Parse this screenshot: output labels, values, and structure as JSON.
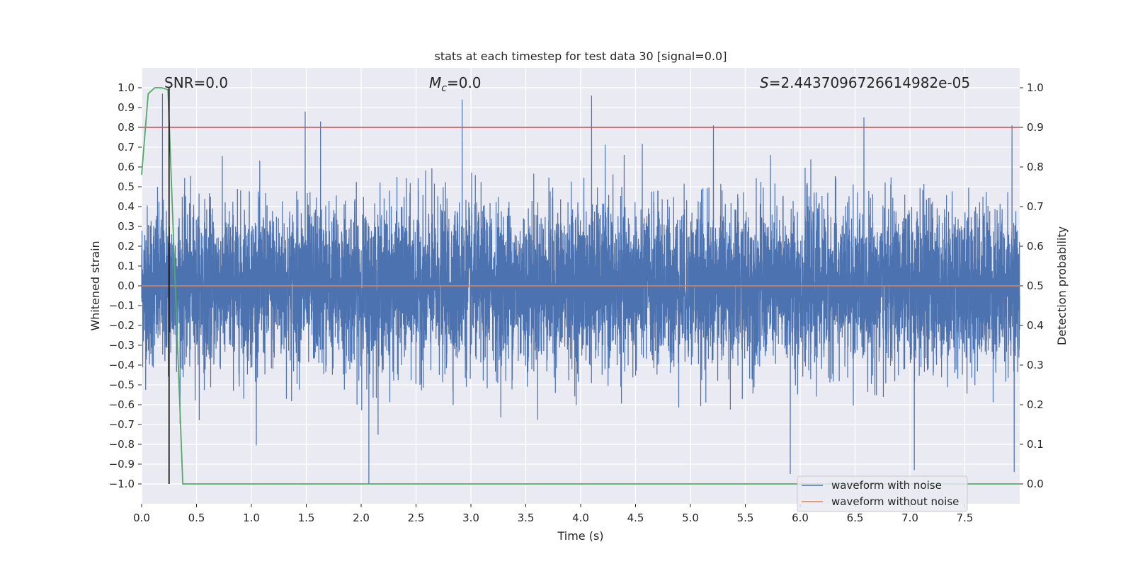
{
  "chart_data": {
    "type": "line",
    "title": "stats at each timestep for test data 30 [signal=0.0]",
    "xlabel": "Time (s)",
    "ylabel_left": "Whitened strain",
    "ylabel_right": "Detection probability",
    "xlim": [
      0.0,
      8.0
    ],
    "ylim_left": [
      -1.1,
      1.1
    ],
    "ylim_right": [
      -0.05,
      1.05
    ],
    "xticks": [
      0.0,
      0.5,
      1.0,
      1.5,
      2.0,
      2.5,
      3.0,
      3.5,
      4.0,
      4.5,
      5.0,
      5.5,
      6.0,
      6.5,
      7.0,
      7.5
    ],
    "xtick_labels": [
      "0.0",
      "0.5",
      "1.0",
      "1.5",
      "2.0",
      "2.5",
      "3.0",
      "3.5",
      "4.0",
      "4.5",
      "5.0",
      "5.5",
      "6.0",
      "6.5",
      "7.0",
      "7.5"
    ],
    "yticks_left": [
      -1.0,
      -0.9,
      -0.8,
      -0.7,
      -0.6,
      -0.5,
      -0.4,
      -0.3,
      -0.2,
      -0.1,
      0.0,
      0.1,
      0.2,
      0.3,
      0.4,
      0.5,
      0.6,
      0.7,
      0.8,
      0.9,
      1.0
    ],
    "ytick_labels_left": [
      "−1.0",
      "−0.9",
      "−0.8",
      "−0.7",
      "−0.6",
      "−0.5",
      "−0.4",
      "−0.3",
      "−0.2",
      "−0.1",
      "0.0",
      "0.1",
      "0.2",
      "0.3",
      "0.4",
      "0.5",
      "0.6",
      "0.7",
      "0.8",
      "0.9",
      "1.0"
    ],
    "yticks_right": [
      0.0,
      0.1,
      0.2,
      0.3,
      0.4,
      0.5,
      0.6,
      0.7,
      0.8,
      0.9,
      1.0
    ],
    "ytick_labels_right": [
      "0.0",
      "0.1",
      "0.2",
      "0.3",
      "0.4",
      "0.5",
      "0.6",
      "0.7",
      "0.8",
      "0.9",
      "1.0"
    ],
    "grid": true,
    "annotations": {
      "snr": "SNR=0.0",
      "mc_symbol": "M",
      "mc_sub": "c",
      "mc_value": "=0.0",
      "s_symbol": "S",
      "s_value": "=2.4437096726614982e-05"
    },
    "series": [
      {
        "name": "waveform with noise",
        "axis": "left",
        "color": "#4c72b0",
        "description": "dense noise trace, envelope roughly -0.65..0.65 with spikes to about 0.96 and -1.0",
        "envelope": [
          -0.65,
          0.65
        ],
        "peaks": [
          {
            "x": 0.19,
            "y": 0.97
          },
          {
            "x": 1.49,
            "y": 0.88
          },
          {
            "x": 1.63,
            "y": 0.83
          },
          {
            "x": 2.07,
            "y": -1.0
          },
          {
            "x": 2.92,
            "y": 0.94
          },
          {
            "x": 4.1,
            "y": 0.96
          },
          {
            "x": 5.21,
            "y": 0.81
          },
          {
            "x": 5.91,
            "y": -0.95
          },
          {
            "x": 7.04,
            "y": -0.93
          },
          {
            "x": 7.93,
            "y": 0.81
          },
          {
            "x": 7.95,
            "y": -0.94
          }
        ]
      },
      {
        "name": "waveform without noise",
        "axis": "left",
        "color": "#dd8452",
        "x": [
          0.0,
          8.0
        ],
        "y": [
          0.0,
          0.0
        ]
      },
      {
        "name": "detection probability",
        "axis": "right",
        "color": "#55a868",
        "x": [
          0.0,
          0.06,
          0.12,
          0.18,
          0.24,
          0.3,
          0.375,
          8.0
        ],
        "y": [
          0.78,
          0.985,
          1.0,
          1.0,
          0.995,
          0.55,
          0.0,
          0.0
        ]
      }
    ],
    "threshold": {
      "axis": "right",
      "value": 0.9,
      "color": "#c44e52"
    },
    "marker_line": {
      "x": 0.25,
      "ylim": [
        -1.0,
        1.0
      ],
      "color": "#000000"
    },
    "legend": {
      "position": "lower-right",
      "entries": [
        {
          "label": "waveform with noise",
          "color": "#4c72b0"
        },
        {
          "label": "waveform without noise",
          "color": "#dd8452"
        }
      ]
    },
    "colors": {
      "axes_bg": "#eaeaf2",
      "grid": "#ffffff",
      "text": "#262626"
    }
  }
}
